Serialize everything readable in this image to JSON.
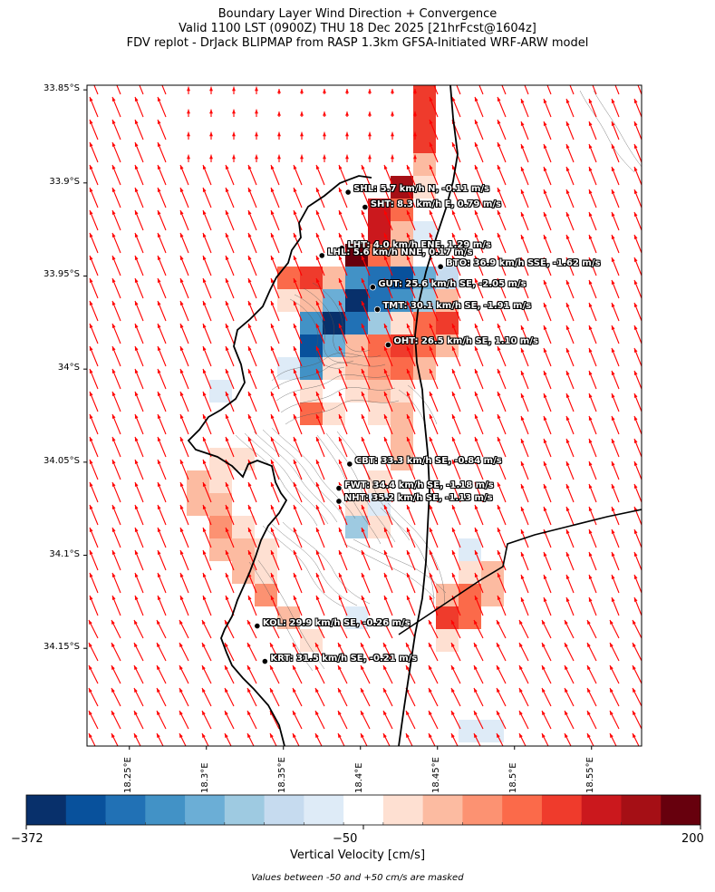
{
  "title": {
    "line1": "Boundary Layer Wind Direction + Convergence",
    "line2": "Valid 1100 LST (0900Z) THU 18 Dec 2025 [21hrFcst@1604z]",
    "line3": "FDV replot - DrJack BLIPMAP from RASP 1.3km GFSA-Initiated WRF-ARW model"
  },
  "lat_labels": [
    "33.85°S",
    "33.9°S",
    "33.95°S",
    "34°S",
    "34.05°S",
    "34.1°S",
    "34.15°S"
  ],
  "lon_labels": [
    "18.25°E",
    "18.3°E",
    "18.35°E",
    "18.4°E",
    "18.45°E",
    "18.5°E",
    "18.55°E"
  ],
  "stations": [
    {
      "code": "SHL",
      "label": "SHL: 5.7 km/h N, -0.11 m/s",
      "lon": 18.392,
      "lat": -33.905
    },
    {
      "code": "SHT",
      "label": "SHT: 8.3 km/h E, 0.79 m/s",
      "lon": 18.403,
      "lat": -33.913
    },
    {
      "code": "LHT",
      "label": "LHT: 4.0 km/h ENE, 1.29 m/s",
      "lon": 18.388,
      "lat": -33.935
    },
    {
      "code": "LHL",
      "label": "LHL: 5.6 km/h NNE, 0.17 m/s",
      "lon": 18.375,
      "lat": -33.939
    },
    {
      "code": "BTO",
      "label": "BTO: 36.9 km/h SSE, -1.62 m/s",
      "lon": 18.452,
      "lat": -33.945
    },
    {
      "code": "GUT",
      "label": "GUT: 25.6 km/h SE, -2.05 m/s",
      "lon": 18.408,
      "lat": -33.956
    },
    {
      "code": "TMT",
      "label": "TMT: 30.1 km/h SE, -1.91 m/s",
      "lon": 18.411,
      "lat": -33.968
    },
    {
      "code": "OHT",
      "label": "OHT: 26.5 km/h SE, 1.10 m/s",
      "lon": 18.418,
      "lat": -33.987
    },
    {
      "code": "CBT",
      "label": "CBT: 33.3 km/h SE, -0.84 m/s",
      "lon": 18.393,
      "lat": -34.051
    },
    {
      "code": "FWT",
      "label": "FWT: 34.4 km/h SE, -1.18 m/s",
      "lon": 18.386,
      "lat": -34.064
    },
    {
      "code": "NHT",
      "label": "NHT: 35.2 km/h SE, -1.13 m/s",
      "lon": 18.386,
      "lat": -34.071
    },
    {
      "code": "KOL",
      "label": "KOL: 29.9 km/h SE, -0.26 m/s",
      "lon": 18.333,
      "lat": -34.138
    },
    {
      "code": "KRT",
      "label": "KRT: 31.5 km/h SE, -0.21 m/s",
      "lon": 18.338,
      "lat": -34.157
    }
  ],
  "map_extent": {
    "lon": [
      18.2225,
      18.5825
    ],
    "lat": [
      -34.2025,
      -33.8475
    ]
  },
  "colorbar": {
    "title": "Vertical Velocity [cm/s]",
    "min_label": "−372",
    "mid_label": "−50",
    "max_label": "200",
    "colors": [
      "#08306b",
      "#08519c",
      "#2171b5",
      "#4292c6",
      "#6baed6",
      "#9ecae1",
      "#c6dbef",
      "#deebf7",
      "#ffffff",
      "#fee0d2",
      "#fcbba1",
      "#fc9272",
      "#fb6a4a",
      "#ef3b2c",
      "#cb181d",
      "#a50f15",
      "#67000d"
    ]
  },
  "mask_note": "Values between -50 and +50 cm/s are masked",
  "colors": {
    "wind_vector": "#ff0000",
    "coastline": "#000000",
    "contour": "#555555"
  }
}
